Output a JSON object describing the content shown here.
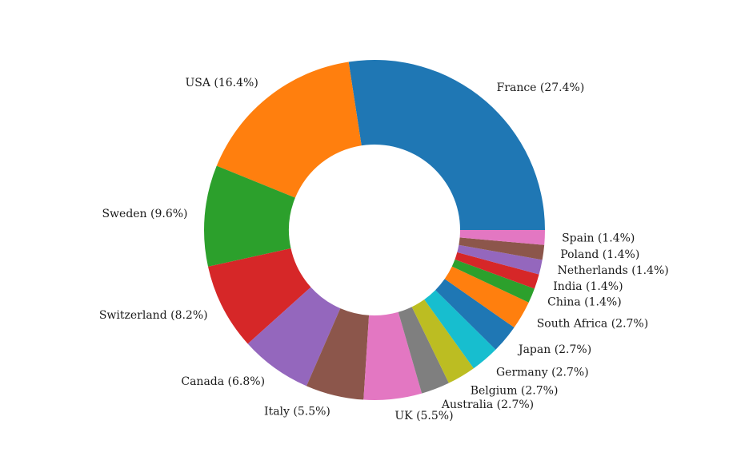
{
  "chart_data": {
    "type": "pie",
    "variant": "donut",
    "title": "",
    "start_angle_deg": 0,
    "direction": "counterclockwise",
    "slices": [
      {
        "label": "France",
        "percent_text": "27.4%",
        "value": 27.4,
        "color": "#1f77b4"
      },
      {
        "label": "USA",
        "percent_text": "16.4%",
        "value": 16.4,
        "color": "#ff7f0e"
      },
      {
        "label": "Sweden",
        "percent_text": "9.6%",
        "value": 9.6,
        "color": "#2ca02c"
      },
      {
        "label": "Switzerland",
        "percent_text": "8.2%",
        "value": 8.2,
        "color": "#d62728"
      },
      {
        "label": "Canada",
        "percent_text": "6.8%",
        "value": 6.8,
        "color": "#9467bd"
      },
      {
        "label": "Italy",
        "percent_text": "5.5%",
        "value": 5.5,
        "color": "#8c564b"
      },
      {
        "label": "UK",
        "percent_text": "5.5%",
        "value": 5.5,
        "color": "#e377c2"
      },
      {
        "label": "Australia",
        "percent_text": "2.7%",
        "value": 2.7,
        "color": "#7f7f7f"
      },
      {
        "label": "Belgium",
        "percent_text": "2.7%",
        "value": 2.7,
        "color": "#bcbd22"
      },
      {
        "label": "Germany",
        "percent_text": "2.7%",
        "value": 2.7,
        "color": "#17becf"
      },
      {
        "label": "Japan",
        "percent_text": "2.7%",
        "value": 2.7,
        "color": "#1f77b4"
      },
      {
        "label": "South Africa",
        "percent_text": "2.7%",
        "value": 2.7,
        "color": "#ff7f0e"
      },
      {
        "label": "China",
        "percent_text": "1.4%",
        "value": 1.4,
        "color": "#2ca02c"
      },
      {
        "label": "India",
        "percent_text": "1.4%",
        "value": 1.4,
        "color": "#d62728"
      },
      {
        "label": "Netherlands",
        "percent_text": "1.4%",
        "value": 1.4,
        "color": "#9467bd"
      },
      {
        "label": "Poland",
        "percent_text": "1.4%",
        "value": 1.4,
        "color": "#8c564b"
      },
      {
        "label": "Spain",
        "percent_text": "1.4%",
        "value": 1.4,
        "color": "#e377c2"
      }
    ]
  }
}
